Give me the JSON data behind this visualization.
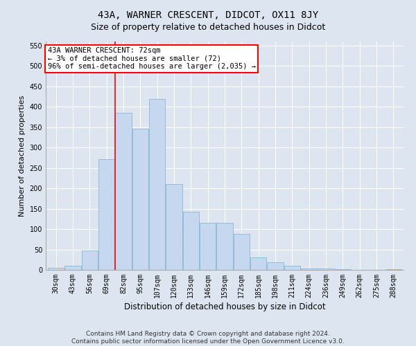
{
  "title": "43A, WARNER CRESCENT, DIDCOT, OX11 8JY",
  "subtitle": "Size of property relative to detached houses in Didcot",
  "xlabel": "Distribution of detached houses by size in Didcot",
  "ylabel": "Number of detached properties",
  "footer_line1": "Contains HM Land Registry data © Crown copyright and database right 2024.",
  "footer_line2": "Contains public sector information licensed under the Open Government Licence v3.0.",
  "categories": [
    "30sqm",
    "43sqm",
    "56sqm",
    "69sqm",
    "82sqm",
    "95sqm",
    "107sqm",
    "120sqm",
    "133sqm",
    "146sqm",
    "159sqm",
    "172sqm",
    "185sqm",
    "198sqm",
    "211sqm",
    "224sqm",
    "236sqm",
    "249sqm",
    "262sqm",
    "275sqm",
    "288sqm"
  ],
  "values": [
    5,
    10,
    48,
    272,
    385,
    347,
    420,
    210,
    142,
    115,
    115,
    88,
    30,
    18,
    10,
    4,
    4,
    2,
    0,
    0,
    2
  ],
  "bar_color": "#c5d8f0",
  "bar_edge_color": "#7aafd4",
  "annotation_line1": "43A WARNER CRESCENT: 72sqm",
  "annotation_line2": "← 3% of detached houses are smaller (72)",
  "annotation_line3": "96% of semi-detached houses are larger (2,035) →",
  "red_line_x": 3.5,
  "ylim": [
    0,
    560
  ],
  "yticks": [
    0,
    50,
    100,
    150,
    200,
    250,
    300,
    350,
    400,
    450,
    500,
    550
  ],
  "background_color": "#dde6f0",
  "plot_background": "#dde6f0",
  "grid_color": "#ffffff",
  "title_fontsize": 10,
  "subtitle_fontsize": 9,
  "xlabel_fontsize": 8.5,
  "ylabel_fontsize": 8,
  "tick_fontsize": 7,
  "ann_fontsize": 7.5,
  "footer_fontsize": 6.5
}
